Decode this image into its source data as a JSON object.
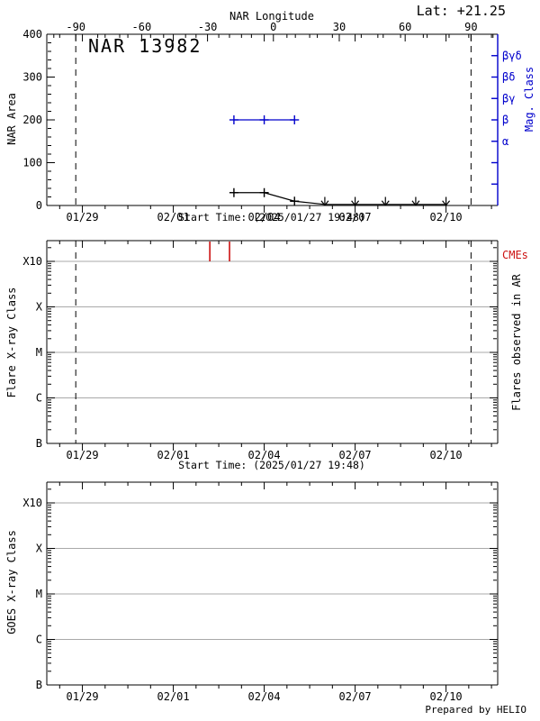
{
  "header": {
    "lat_label": "Lat: +21.25"
  },
  "footer": {
    "credit": "Prepared by HELIO"
  },
  "colors": {
    "axis": "#000000",
    "blue": "#0000cc",
    "red": "#cc1111",
    "grid": "#a9a9a9",
    "background": "#ffffff"
  },
  "chart_data": [
    {
      "type": "line",
      "panel": "nar-area",
      "title": "NAR 13982",
      "lat_label": "Lat: +21.25",
      "ylabel": "NAR Area",
      "ylim": [
        0,
        400
      ],
      "yticks": [
        0,
        100,
        200,
        300,
        400
      ],
      "y_minor_step": 20,
      "xlabel": "Start Time: (2025/01/27 19:48)",
      "xlim_days": [
        0,
        14.88
      ],
      "x_ticks": [
        {
          "label": "01/29",
          "day": 1.175
        },
        {
          "label": "02/01",
          "day": 4.175
        },
        {
          "label": "02/04",
          "day": 7.175
        },
        {
          "label": "02/07",
          "day": 10.175
        },
        {
          "label": "02/10",
          "day": 13.175
        }
      ],
      "x_minor_interval_days": 0.75,
      "top_axis": {
        "label": "NAR Longitude",
        "ticks": [
          -90,
          -60,
          -30,
          0,
          30,
          60,
          90
        ],
        "minor_step": 10
      },
      "right_axis": {
        "label": "Mag. Class",
        "tick_step_area_units": 50,
        "class_labels": [
          {
            "label": "α",
            "area_value": 150
          },
          {
            "label": "β",
            "area_value": 200
          },
          {
            "label": "βγ",
            "area_value": 250
          },
          {
            "label": "βδ",
            "area_value": 300
          },
          {
            "label": "βγδ",
            "area_value": 350
          }
        ]
      },
      "limb_lines_days": [
        0.956,
        14.0
      ],
      "series": [
        {
          "name": "nar-area",
          "color": "black",
          "marker": "plus",
          "points": [
            {
              "date": "02/03",
              "day": 6.175,
              "value": 30
            },
            {
              "date": "02/04",
              "day": 7.175,
              "value": 30
            },
            {
              "date": "02/05",
              "day": 8.175,
              "value": 10
            }
          ],
          "zero_points": [
            {
              "date": "02/06",
              "day": 9.175,
              "value": 0
            },
            {
              "date": "02/07",
              "day": 10.175,
              "value": 0
            },
            {
              "date": "02/08",
              "day": 11.175,
              "value": 0
            },
            {
              "date": "02/09",
              "day": 12.175,
              "value": 0
            },
            {
              "date": "02/10",
              "day": 13.175,
              "value": 0
            }
          ]
        },
        {
          "name": "mag-class",
          "color": "blue",
          "marker": "plus",
          "points": [
            {
              "date": "02/03",
              "day": 6.175,
              "class": "β",
              "area_value": 200
            },
            {
              "date": "02/04",
              "day": 7.175,
              "class": "β",
              "area_value": 200
            },
            {
              "date": "02/05",
              "day": 8.175,
              "class": "β",
              "area_value": 200
            }
          ]
        }
      ]
    },
    {
      "type": "line",
      "panel": "flare-xray",
      "ylabel": "Flare X-ray Class",
      "right_label": "Flares observed in AR",
      "yticks": [
        "B",
        "C",
        "M",
        "X",
        "X10"
      ],
      "xlabel": "Start Time: (2025/01/27 19:48)",
      "x_ticks": [
        {
          "label": "01/29",
          "day": 1.175
        },
        {
          "label": "02/01",
          "day": 4.175
        },
        {
          "label": "02/04",
          "day": 7.175
        },
        {
          "label": "02/07",
          "day": 10.175
        },
        {
          "label": "02/10",
          "day": 13.175
        }
      ],
      "limb_lines_days": [
        0.956,
        14.0
      ],
      "cme_label": "CMEs",
      "cme_marks_days": [
        5.38,
        6.03
      ],
      "flares": []
    },
    {
      "type": "line",
      "panel": "goes-xray",
      "ylabel": "GOES X-ray Class",
      "yticks": [
        "B",
        "C",
        "M",
        "X",
        "X10"
      ],
      "x_ticks": [
        {
          "label": "01/29",
          "day": 1.175
        },
        {
          "label": "02/01",
          "day": 4.175
        },
        {
          "label": "02/04",
          "day": 7.175
        },
        {
          "label": "02/07",
          "day": 10.175
        },
        {
          "label": "02/10",
          "day": 13.175
        }
      ],
      "flares": []
    }
  ]
}
